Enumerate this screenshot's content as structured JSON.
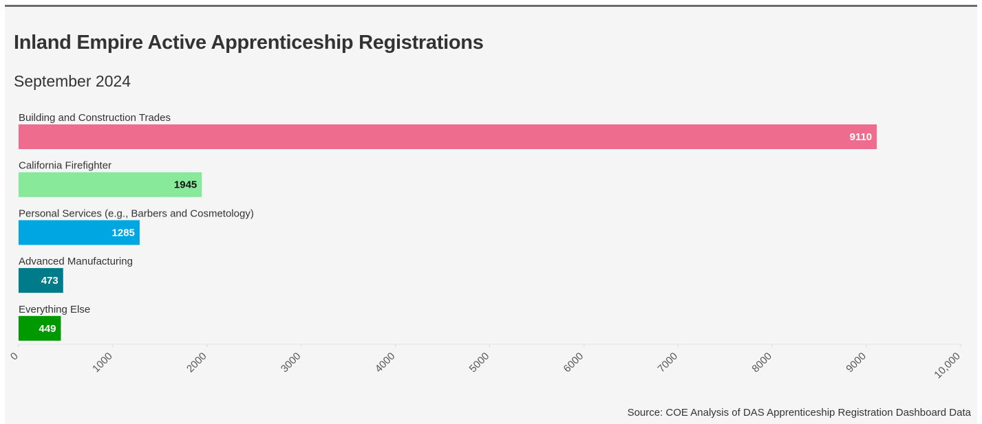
{
  "chart_data": {
    "type": "bar",
    "orientation": "horizontal",
    "title": "Inland Empire Active Apprenticeship Registrations",
    "subtitle": "September 2024",
    "source": "Source: COE Analysis of DAS Apprenticeship Registration Dashboard Data",
    "categories": [
      "Building and Construction Trades",
      "California Firefighter",
      "Personal Services (e.g., Barbers and Cosmetology)",
      "Advanced Manufacturing",
      "Everything Else"
    ],
    "values": [
      9110,
      1945,
      1285,
      473,
      449
    ],
    "data_labels": [
      "9110",
      "1945",
      "1285",
      "473",
      "449"
    ],
    "colors": [
      "#ee6d8f",
      "#88e99a",
      "#00a6e1",
      "#007b8a",
      "#009a00"
    ],
    "label_colors": [
      "#ffffff",
      "#111111",
      "#ffffff",
      "#ffffff",
      "#ffffff"
    ],
    "xlim": [
      0,
      10000
    ],
    "xticks": [
      0,
      1000,
      2000,
      3000,
      4000,
      5000,
      6000,
      7000,
      8000,
      9000,
      10000
    ],
    "xtick_labels": [
      "0",
      "1000",
      "2000",
      "3000",
      "4000",
      "5000",
      "6000",
      "7000",
      "8000",
      "9000",
      "10,000"
    ],
    "xlabel": "",
    "ylabel": "",
    "grid": false,
    "legend": "none"
  }
}
